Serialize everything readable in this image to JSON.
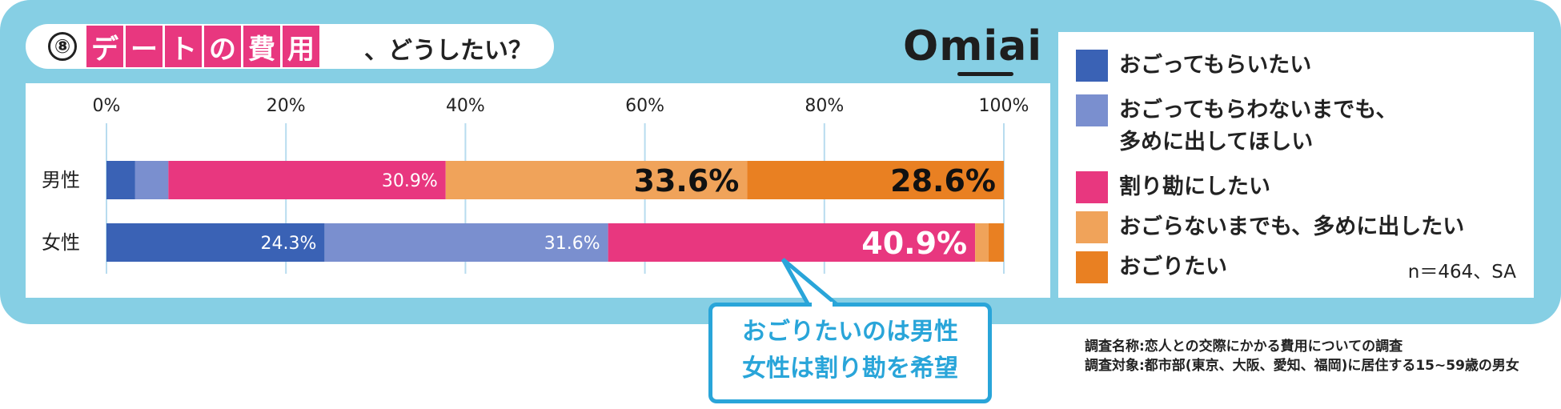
{
  "title": {
    "number": "⑧",
    "highlight_chars": [
      "デ",
      "ー",
      "ト",
      "の",
      "費",
      "用"
    ],
    "rest": "、どうしたい？"
  },
  "logo": {
    "text": "Omiai"
  },
  "legend": {
    "items": [
      {
        "label": "おごってもらいたい",
        "color": "#3a62b5"
      },
      {
        "label": "おごってもらわないまでも、\n多めに出してほしい",
        "color": "#7a8fcf"
      },
      {
        "label": "割り勘にしたい",
        "color": "#e8377f"
      },
      {
        "label": "おごらないまでも、多めに出したい",
        "color": "#f0a35a"
      },
      {
        "label": "おごりたい",
        "color": "#e98022"
      }
    ],
    "sample_note": "n＝464、SA"
  },
  "callout": {
    "text": "おごりたいのは男性\n女性は割り勘を希望"
  },
  "footnotes": [
    "調査名称:恋人との交際にかかる費用についての調査",
    "調査対象:都市部(東京、大阪、愛知、福岡)に居住する15~59歳の男女"
  ],
  "chart_data": {
    "type": "bar",
    "orientation": "horizontal-stacked",
    "xlim": [
      0,
      100
    ],
    "x_ticks": [
      "0%",
      "20%",
      "40%",
      "60%",
      "80%",
      "100%"
    ],
    "categories": [
      "男性",
      "女性"
    ],
    "series": [
      {
        "name": "おごってもらいたい",
        "color": "#3a62b5",
        "values": [
          3.2,
          24.3
        ]
      },
      {
        "name": "おごってもらわないまでも、多めに出してほしい",
        "color": "#7a8fcf",
        "values": [
          3.7,
          31.6
        ]
      },
      {
        "name": "割り勘にしたい",
        "color": "#e8377f",
        "values": [
          30.9,
          40.9
        ]
      },
      {
        "name": "おごらないまでも、多めに出したい",
        "color": "#f0a35a",
        "values": [
          33.6,
          1.5
        ]
      },
      {
        "name": "おごりたい",
        "color": "#e98022",
        "values": [
          28.6,
          1.7
        ]
      }
    ],
    "data_labels": [
      {
        "row": 0,
        "series": 2,
        "text": "30.9%",
        "style": "small"
      },
      {
        "row": 0,
        "series": 3,
        "text": "33.6%",
        "style": "large"
      },
      {
        "row": 0,
        "series": 4,
        "text": "28.6%",
        "style": "large"
      },
      {
        "row": 1,
        "series": 0,
        "text": "24.3%",
        "style": "small"
      },
      {
        "row": 1,
        "series": 1,
        "text": "31.6%",
        "style": "small"
      },
      {
        "row": 1,
        "series": 2,
        "text": "40.9%",
        "style": "large-white"
      }
    ],
    "grid": true
  }
}
